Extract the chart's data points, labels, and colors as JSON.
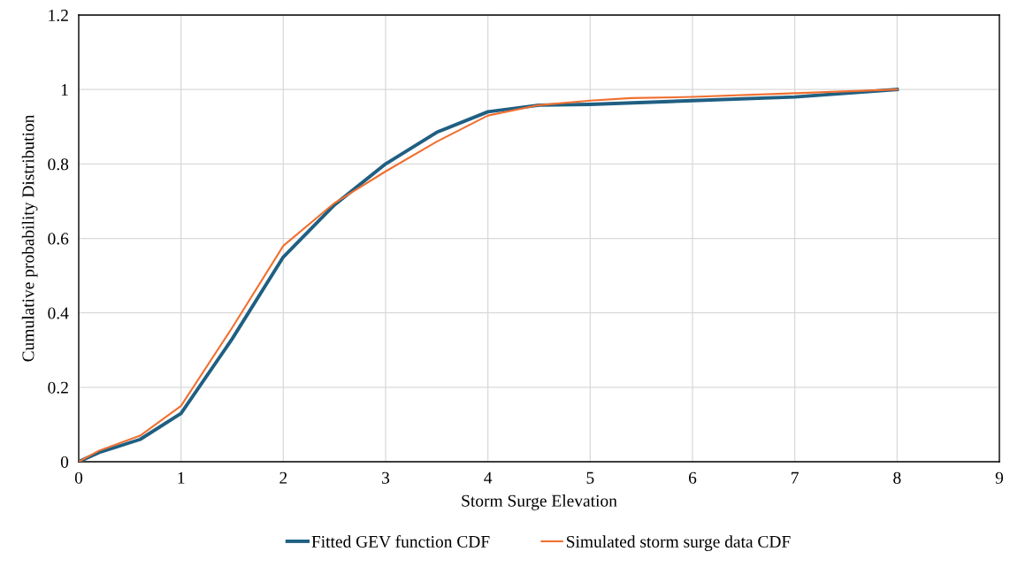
{
  "chart_data": {
    "type": "line",
    "xlabel": "Storm Surge Elevation",
    "ylabel": "Cumulative probability Distribution",
    "series": [
      {
        "name": "Fitted GEV function CDF",
        "color": "#1f5f82",
        "x": [
          0,
          0.2,
          0.6,
          1,
          1.5,
          2,
          2.5,
          3,
          3.5,
          4,
          4.5,
          5,
          6,
          7,
          8
        ],
        "values": [
          0,
          0.025,
          0.06,
          0.13,
          0.33,
          0.55,
          0.69,
          0.8,
          0.885,
          0.94,
          0.958,
          0.96,
          0.97,
          0.98,
          1.0
        ]
      },
      {
        "name": "Simulated storm surge data CDF",
        "color": "#f07030",
        "x": [
          0,
          0.2,
          0.6,
          1,
          1.5,
          2,
          2.5,
          3,
          3.5,
          4,
          4.5,
          5,
          5.4,
          6,
          7,
          8
        ],
        "values": [
          0,
          0.03,
          0.07,
          0.15,
          0.36,
          0.58,
          0.695,
          0.78,
          0.86,
          0.93,
          0.958,
          0.97,
          0.977,
          0.98,
          0.99,
          1.0
        ]
      }
    ],
    "xlim": [
      0,
      9
    ],
    "xticks": [
      0,
      1,
      2,
      3,
      4,
      5,
      6,
      7,
      8,
      9
    ],
    "ylim": [
      0,
      1.2
    ],
    "yticks": [
      0,
      0.2,
      0.4,
      0.6,
      0.8,
      1,
      1.2
    ],
    "grid": true,
    "legend": "bottom",
    "marker": "none",
    "line_style": "solid"
  }
}
